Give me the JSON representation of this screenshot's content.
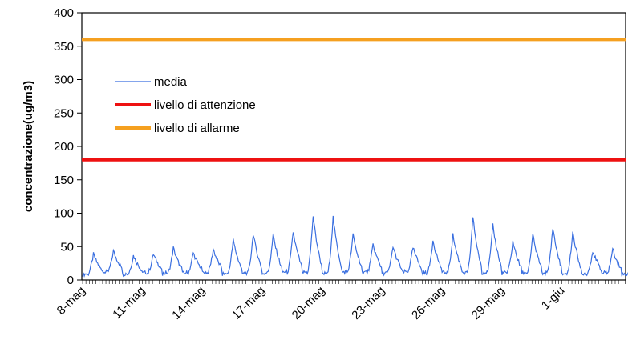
{
  "chart_data": {
    "type": "line",
    "title": "",
    "xlabel": "",
    "ylabel": "concentrazione(ug/m3)",
    "ylim": [
      0,
      400
    ],
    "yticks": [
      0,
      50,
      100,
      150,
      200,
      250,
      300,
      350,
      400
    ],
    "x_tick_labels": [
      "8-mag",
      "11-mag",
      "14-mag",
      "17-mag",
      "20-mag",
      "23-mag",
      "26-mag",
      "29-mag",
      "1-giu"
    ],
    "grid": false,
    "legend_position": "upper-left inside plot",
    "colors": {
      "media": "#3a6fe0",
      "attenzione": "#ee1111",
      "allarme": "#f5a020"
    },
    "series": [
      {
        "name": "media",
        "style": "line",
        "x_unit": "day",
        "daily_peaks": [
          40,
          45,
          38,
          40,
          50,
          42,
          48,
          62,
          72,
          70,
          75,
          100,
          98,
          70,
          55,
          52,
          50,
          62,
          70,
          98,
          85,
          60,
          70,
          82,
          75,
          45,
          48,
          50
        ],
        "daily_peak_times": [
          "8-mag",
          "9-mag",
          "10-mag",
          "11-mag",
          "12-mag",
          "13-mag",
          "14-mag",
          "15-mag",
          "16-mag",
          "17-mag",
          "18-mag",
          "19-mag",
          "20-mag",
          "21-mag",
          "22-mag",
          "23-mag",
          "24-mag",
          "25-mag",
          "26-mag",
          "27-mag",
          "28-mag",
          "29-mag",
          "30-mag",
          "31-mag",
          "1-giu",
          "2-giu",
          "3-giu",
          "4-giu"
        ],
        "daily_min": 8
      },
      {
        "name": "livello di attenzione",
        "style": "hline",
        "value": 180
      },
      {
        "name": "livello di allarme",
        "style": "hline",
        "value": 360
      }
    ]
  }
}
